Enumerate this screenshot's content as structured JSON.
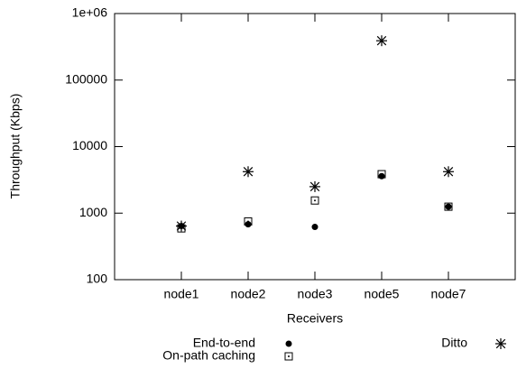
{
  "chart_data": {
    "type": "scatter",
    "categories": [
      "node1",
      "node2",
      "node3",
      "node5",
      "node7"
    ],
    "x_label": "Receivers",
    "y_label": "Throughput (Kbps)",
    "log_y": true,
    "ylim": [
      100,
      1000000
    ],
    "yticks": [
      100,
      1000,
      10000,
      100000,
      {
        "value": 1000000,
        "label": "1e+06"
      }
    ],
    "grid": false,
    "series": [
      {
        "name": "End-to-end",
        "color": "#000000",
        "marker": "circle",
        "values": [
          640,
          680,
          620,
          3600,
          1250
        ]
      },
      {
        "name": "On-path caching",
        "color": "#000000",
        "marker": "square-dot",
        "values": [
          590,
          750,
          1550,
          3850,
          1250
        ]
      },
      {
        "name": "Ditto",
        "color": "#000000",
        "marker": "asterisk",
        "values": [
          640,
          4200,
          2500,
          390000,
          4200
        ]
      }
    ]
  }
}
